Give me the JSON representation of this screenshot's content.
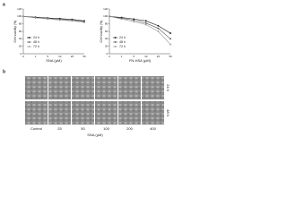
{
  "panels": {
    "a": "a",
    "b": "b"
  },
  "chart_data": [
    {
      "type": "line",
      "xlabel": "SNA (μM)",
      "ylabel": "Cell viability (%)",
      "categories": [
        "0",
        "1",
        "5",
        "10",
        "25",
        "50"
      ],
      "ylim": [
        0,
        120
      ],
      "yticks": [
        0,
        20,
        40,
        60,
        80,
        100,
        120
      ],
      "legend": "lower left",
      "series": [
        {
          "name": "24 h",
          "color": "#111111",
          "values": [
            100,
            98,
            96,
            94,
            92,
            88
          ]
        },
        {
          "name": "48 h",
          "color": "#555555",
          "values": [
            100,
            97,
            95,
            92,
            90,
            86
          ]
        },
        {
          "name": "72 h",
          "color": "#999999",
          "values": [
            100,
            96,
            93,
            90,
            88,
            84
          ]
        }
      ]
    },
    {
      "type": "line",
      "xlabel": "FN-HSA (μM)",
      "ylabel": "Cell viability (%)",
      "categories": [
        "0",
        "1",
        "5",
        "10",
        "25",
        "50"
      ],
      "ylim": [
        0,
        120
      ],
      "yticks": [
        0,
        20,
        40,
        60,
        80,
        100,
        120
      ],
      "legend": "lower left",
      "series": [
        {
          "name": "24 h",
          "color": "#111111",
          "values": [
            100,
            97,
            93,
            88,
            75,
            55
          ]
        },
        {
          "name": "48 h",
          "color": "#555555",
          "values": [
            100,
            95,
            90,
            82,
            68,
            40
          ]
        },
        {
          "name": "72 h",
          "color": "#999999",
          "values": [
            100,
            93,
            86,
            78,
            60,
            25
          ]
        }
      ]
    }
  ],
  "image_grid": {
    "column_labels": [
      "Control",
      "25",
      "50",
      "100",
      "200",
      "400"
    ],
    "row_labels": [
      "24 h",
      "48 h"
    ],
    "xlabel": "SNA (μM)"
  }
}
